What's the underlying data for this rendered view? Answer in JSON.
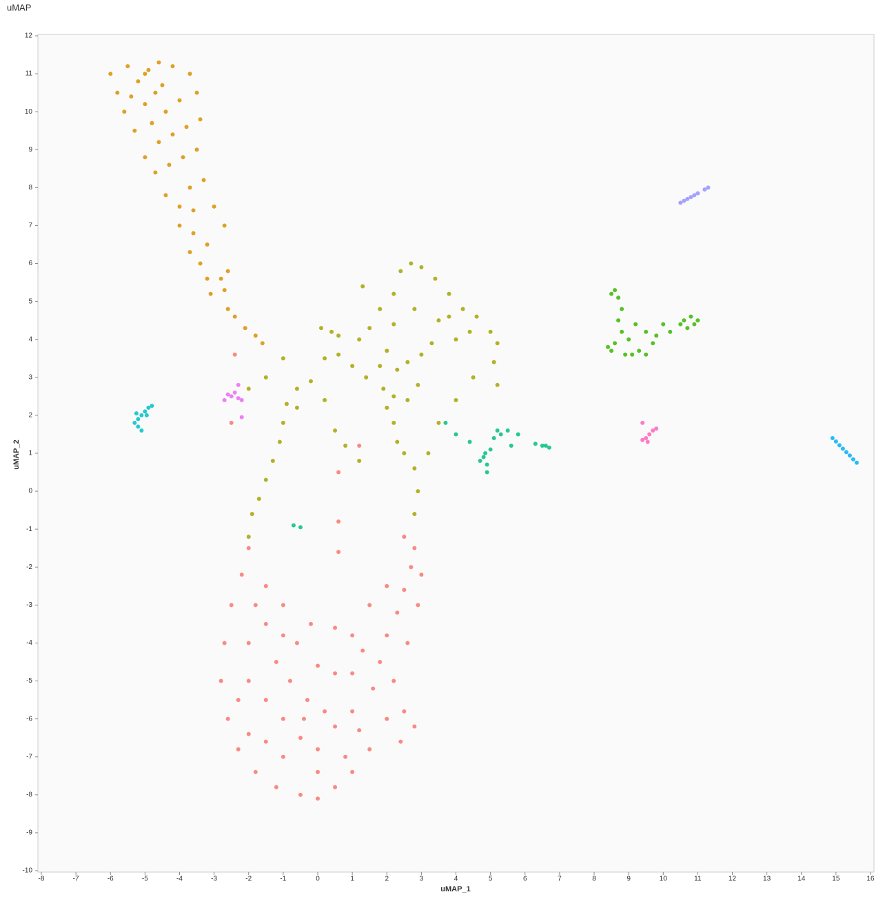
{
  "chart_data": {
    "type": "scatter",
    "title": "uMAP",
    "x_label": "uMAP_1",
    "y_label": "uMAP_2",
    "xlim": [
      -8.1,
      16.1
    ],
    "ylim": [
      -10,
      12
    ],
    "xticks": [
      -8,
      -7,
      -6,
      -5,
      -4,
      -3,
      -2,
      -1,
      0,
      1,
      2,
      3,
      4,
      5,
      6,
      7,
      8,
      9,
      10,
      11,
      12,
      13,
      14,
      15,
      16
    ],
    "yticks": [
      -10,
      -9,
      -8,
      -7,
      -6,
      -5,
      -4,
      -3,
      -2,
      -1,
      0,
      1,
      2,
      3,
      4,
      5,
      6,
      7,
      8,
      9,
      10,
      11,
      12
    ],
    "series": [
      {
        "color": "#F8766D",
        "x": [
          -2.8,
          -2.7,
          -2.5,
          -2.2,
          -2,
          -2.6,
          -2.3,
          -1.8,
          -1.2,
          -0.5,
          0,
          0.5,
          1,
          1.5,
          -2,
          -1.5,
          -1,
          -0.5,
          0,
          0.5,
          1,
          -2,
          -1.5,
          -1.2,
          -0.8,
          -0.3,
          0.2,
          -1.8,
          -1.5,
          -1,
          -0.6,
          0,
          0.5,
          1,
          1.3,
          1.8,
          2,
          2.3,
          2.5,
          2.7,
          2.8,
          2.9,
          3,
          2.6,
          2.2,
          2.5,
          2.8,
          2.4,
          2,
          1.6,
          1,
          0.5,
          1.5,
          2,
          2.5,
          0.6,
          0.6,
          0.6,
          -0.4,
          -1,
          0,
          0.8,
          -2.3,
          -2,
          -1.5,
          1.2,
          -2.5,
          -2.4,
          1.2,
          -1,
          -0.2
        ],
        "y": [
          -5,
          -4,
          -3,
          -2.2,
          -1.5,
          -6,
          -6.8,
          -7.4,
          -7.8,
          -8,
          -8.1,
          -7.8,
          -7.4,
          -6.8,
          -5,
          -5.5,
          -6,
          -6.5,
          -6.8,
          -6.2,
          -5.8,
          -4,
          -3.5,
          -4.5,
          -5,
          -5.5,
          -5.8,
          -3,
          -2.5,
          -3,
          -4,
          -4.6,
          -4.8,
          -4.8,
          -4.2,
          -4.5,
          -3.8,
          -3.2,
          -2.6,
          -2,
          -1.5,
          -3,
          -2.2,
          -4,
          -5,
          -5.8,
          -6.2,
          -6.6,
          -6,
          -5.2,
          -3.8,
          -3.6,
          -3,
          -2.5,
          -1.2,
          0.5,
          -0.8,
          -1.6,
          -6,
          -7,
          -7.4,
          -7,
          -5.5,
          -6.4,
          -6.6,
          -6.3,
          1.8,
          3.6,
          1.2,
          -3.8,
          -3.5
        ]
      },
      {
        "color": "#D89000",
        "x": [
          -6,
          -5.8,
          -5.5,
          -5.2,
          -5,
          -4.6,
          -4.2,
          -3.7,
          -3.5,
          -3.4,
          -3.5,
          -3.3,
          -3,
          -2.7,
          -5.6,
          -5.3,
          -5,
          -4.7,
          -4.4,
          -4,
          -3.8,
          -4.2,
          -4.6,
          -5,
          -4.7,
          -4.3,
          -3.9,
          -4.4,
          -4,
          -3.7,
          -4,
          -3.6,
          -3.7,
          -3.4,
          -3.2,
          -3.1,
          -2.7,
          -2.6,
          -2.4,
          -2.1,
          -1.8,
          -1.6,
          -2.6,
          -4.8,
          -4.5,
          -5.4,
          -4.9,
          -3.6,
          -3.2,
          -2.8
        ],
        "y": [
          11,
          10.5,
          11.2,
          10.8,
          11,
          11.3,
          11.2,
          11,
          10.5,
          9.8,
          9,
          8.2,
          7.5,
          7,
          10,
          9.5,
          10.2,
          10.5,
          10,
          10.3,
          9.6,
          9.4,
          9.2,
          8.8,
          8.4,
          8.6,
          8.8,
          7.8,
          7.5,
          8,
          7,
          6.8,
          6.3,
          6,
          5.6,
          5.2,
          5.3,
          4.8,
          4.6,
          4.3,
          4.1,
          3.9,
          5.8,
          9.7,
          10.7,
          10.4,
          11.1,
          7.4,
          6.5,
          5.6
        ]
      },
      {
        "color": "#A3A500",
        "x": [
          -2,
          -1.9,
          -1.7,
          -1.5,
          -1.3,
          -1.1,
          -1,
          -0.9,
          -0.6,
          -0.2,
          0.2,
          0.4,
          0.6,
          0.1,
          0.6,
          1,
          1.4,
          1.8,
          2,
          2.3,
          2.6,
          3,
          3.3,
          1.5,
          1.8,
          2.2,
          2.4,
          2.7,
          3,
          3.4,
          3.8,
          4.2,
          4.6,
          5,
          5.2,
          4.4,
          4,
          3.5,
          2.8,
          2.2,
          1.9,
          2,
          2.2,
          2.3,
          2.6,
          2.9,
          0.5,
          0.8,
          1.2,
          2.5,
          2.8,
          2.9,
          2.8,
          5.1,
          5.2,
          4.5,
          4,
          3.5,
          3.2,
          -2,
          -1.5,
          -1,
          -0.6,
          0.2,
          1.2,
          3.8,
          1.3,
          2.2
        ],
        "y": [
          -1.2,
          -0.6,
          -0.2,
          0.3,
          0.8,
          1.3,
          1.8,
          2.3,
          2.7,
          2.9,
          3.5,
          4.2,
          4.1,
          4.3,
          3.6,
          3.3,
          3,
          3.3,
          3.7,
          3.2,
          3.4,
          3.6,
          3.9,
          4.3,
          4.8,
          5.2,
          5.8,
          6,
          5.9,
          5.6,
          5.2,
          4.8,
          4.6,
          4.2,
          3.9,
          4.2,
          4,
          4.5,
          4.8,
          4.4,
          2.7,
          2.2,
          1.8,
          1.3,
          2.4,
          2.8,
          1.6,
          1.2,
          0.8,
          1,
          0.6,
          0,
          -0.6,
          3.4,
          2.8,
          3,
          2.4,
          1.8,
          1,
          2.7,
          3,
          3.5,
          2.2,
          2.4,
          4,
          4.6,
          5.4,
          2.5
        ]
      },
      {
        "color": "#39B600",
        "x": [
          8.6,
          8.7,
          8.5,
          8.8,
          8.7,
          8.8,
          9,
          9.2,
          9.5,
          9.7,
          9.5,
          9.1,
          8.5,
          8.4,
          8.6,
          9.3,
          10.6,
          10.8,
          11,
          10.9,
          10.5,
          10.7,
          10.2,
          10,
          8.9,
          9.8
        ],
        "y": [
          5.3,
          5.1,
          5.2,
          4.8,
          4.5,
          4.2,
          4,
          4.4,
          4.2,
          3.9,
          3.6,
          3.6,
          3.7,
          3.8,
          3.9,
          3.7,
          4.5,
          4.6,
          4.5,
          4.4,
          4.4,
          4.3,
          4.2,
          4.4,
          3.6,
          4.1
        ]
      },
      {
        "color": "#00BF7D",
        "x": [
          4.8,
          4.9,
          4.85,
          5,
          4.7,
          5.2,
          5.3,
          5.1,
          5.5,
          5.8,
          5.6,
          4,
          4.4,
          3.7,
          6.3,
          6.5,
          6.6,
          6.7,
          -0.7,
          -0.5,
          4.9
        ],
        "y": [
          0.9,
          0.7,
          1,
          1.1,
          0.8,
          1.6,
          1.5,
          1.4,
          1.6,
          1.5,
          1.2,
          1.5,
          1.3,
          1.8,
          1.25,
          1.2,
          1.2,
          1.15,
          -0.9,
          -0.95,
          0.5
        ]
      },
      {
        "color": "#00BFC4",
        "x": [
          -5.3,
          -5.2,
          -5.1,
          -5,
          -4.9,
          -4.8,
          -5.2,
          -5.1,
          -4.95,
          -5.25
        ],
        "y": [
          1.8,
          1.9,
          2,
          2.1,
          2.2,
          2.25,
          1.7,
          1.6,
          2,
          2.05
        ]
      },
      {
        "color": "#00B0F6",
        "x": [
          14.9,
          15,
          15.1,
          15.2,
          15.3,
          15.4,
          15.5,
          15.6
        ],
        "y": [
          1.4,
          1.31,
          1.21,
          1.12,
          1.03,
          0.94,
          0.84,
          0.75
        ]
      },
      {
        "color": "#9590FF",
        "x": [
          10.5,
          10.6,
          10.7,
          10.8,
          11,
          11.2,
          11.3,
          10.9
        ],
        "y": [
          7.6,
          7.65,
          7.7,
          7.75,
          7.85,
          7.95,
          8,
          7.8
        ]
      },
      {
        "color": "#E76BF3",
        "x": [
          -2.7,
          -2.5,
          -2.3,
          -2.2,
          -2.6,
          -2.4,
          -2.2,
          -2.3
        ],
        "y": [
          2.4,
          2.5,
          2.45,
          2.4,
          2.55,
          2.6,
          1.95,
          2.8
        ]
      },
      {
        "color": "#FF62BC",
        "x": [
          9.4,
          9.5,
          9.6,
          9.7,
          9.8,
          9.55,
          9.4
        ],
        "y": [
          1.35,
          1.4,
          1.5,
          1.6,
          1.65,
          1.3,
          1.8
        ]
      }
    ]
  }
}
